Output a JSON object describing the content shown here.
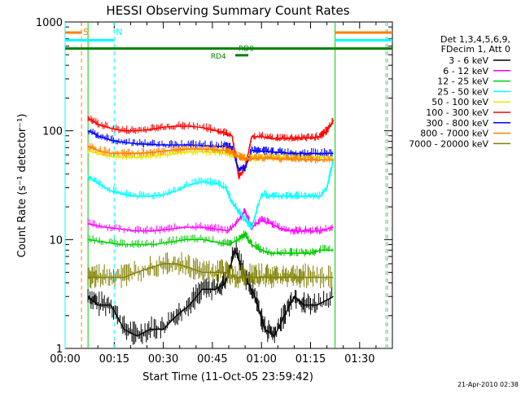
{
  "chart_data": {
    "type": "line",
    "title": "HESSI Observing Summary Count Rates",
    "xlabel": "Start Time (11-Oct-05 23:59:42)",
    "ylabel": "Count Rate (s⁻¹ detector⁻¹)",
    "y_scale": "log",
    "ylim": [
      1,
      1000
    ],
    "xlim_minutes": [
      0,
      100
    ],
    "x_ticks": [
      "00:00",
      "00:15",
      "00:30",
      "00:45",
      "01:00",
      "01:15",
      "01:30"
    ],
    "y_ticks": [
      "1",
      "10",
      "100",
      "1000"
    ],
    "legend_header": [
      "Det 1,3,4,5,6,9,",
      "FDecim 1, Att 0"
    ],
    "legend_position": "right",
    "timestamp": "21-Apr-2010 02:38",
    "series": [
      {
        "name": "3 - 6 keV",
        "color": "#000000",
        "x": [
          7,
          10,
          14,
          18,
          22,
          26,
          30,
          34,
          38,
          42,
          46,
          49,
          52,
          55,
          58,
          61,
          64,
          67,
          70,
          73,
          77,
          82
        ],
        "y": [
          3,
          2.5,
          2.5,
          1.5,
          1.3,
          1.5,
          1.5,
          2,
          2.5,
          3.5,
          3.5,
          4,
          8,
          4.5,
          3,
          1.5,
          1.3,
          2,
          3,
          2.5,
          2.5,
          3
        ]
      },
      {
        "name": "6 - 12 keV",
        "color": "#ff00ff",
        "x": [
          7,
          12,
          17,
          22,
          27,
          32,
          37,
          42,
          46,
          50,
          53,
          55,
          57,
          60,
          63,
          66,
          69,
          72,
          75,
          78,
          82
        ],
        "y": [
          14,
          13,
          12.5,
          12,
          12,
          12.5,
          13,
          13,
          12.5,
          12,
          15,
          18,
          13,
          15,
          14,
          12.5,
          12,
          12,
          12,
          12,
          13
        ]
      },
      {
        "name": "12 - 25 keV",
        "color": "#00cc00",
        "x": [
          7,
          12,
          17,
          22,
          27,
          32,
          37,
          42,
          46,
          50,
          53,
          55,
          57,
          60,
          63,
          66,
          69,
          72,
          75,
          78,
          82
        ],
        "y": [
          10,
          9.5,
          9,
          9,
          9,
          9.5,
          10,
          10,
          9.5,
          9,
          10,
          11,
          9,
          8,
          7.5,
          7.5,
          7.5,
          7.5,
          7.5,
          8,
          8
        ]
      },
      {
        "name": "25 - 50 keV",
        "color": "#00ffff",
        "x": [
          7,
          10,
          14,
          18,
          22,
          26,
          30,
          34,
          38,
          42,
          46,
          49,
          51,
          53,
          55,
          57,
          60,
          63,
          66,
          69,
          72,
          75,
          78,
          80,
          81,
          82
        ],
        "y": [
          38,
          33,
          28,
          26,
          25,
          25,
          26,
          28,
          32,
          34,
          33,
          30,
          22,
          18,
          15,
          13,
          26,
          25,
          25,
          25,
          25,
          25,
          25,
          30,
          40,
          55
        ]
      },
      {
        "name": "50 - 100 keV",
        "color": "#e8e800",
        "x": [
          7,
          10,
          14,
          18,
          22,
          26,
          30,
          34,
          38,
          42,
          46,
          49,
          51,
          52,
          55,
          57,
          60,
          63,
          66,
          69,
          72,
          75,
          78,
          82
        ],
        "y": [
          66,
          62,
          58,
          57,
          57,
          58,
          60,
          62,
          64,
          64,
          63,
          62,
          60,
          59,
          56,
          55,
          57,
          57,
          57,
          57,
          57,
          57,
          57,
          56
        ]
      },
      {
        "name": "100 - 300 keV",
        "color": "#ff0000",
        "x": [
          7,
          10,
          14,
          18,
          22,
          26,
          30,
          34,
          38,
          42,
          46,
          49,
          51,
          53,
          55,
          57,
          60,
          63,
          66,
          69,
          72,
          75,
          78,
          80,
          82
        ],
        "y": [
          130,
          115,
          105,
          100,
          100,
          103,
          108,
          110,
          110,
          107,
          100,
          95,
          90,
          38,
          45,
          88,
          88,
          85,
          85,
          85,
          86,
          86,
          88,
          100,
          125
        ]
      },
      {
        "name": "300 - 800 keV",
        "color": "#0000ff",
        "x": [
          7,
          10,
          14,
          18,
          22,
          26,
          30,
          34,
          38,
          42,
          46,
          49,
          51,
          53,
          55,
          57,
          60,
          63,
          66,
          69,
          72,
          75,
          78,
          82
        ],
        "y": [
          100,
          90,
          82,
          78,
          76,
          75,
          74,
          74,
          74,
          73,
          72,
          72,
          68,
          45,
          45,
          66,
          65,
          64,
          63,
          62,
          62,
          62,
          62,
          62
        ]
      },
      {
        "name": "800 - 7000 keV",
        "color": "#ff8000",
        "x": [
          7,
          10,
          14,
          18,
          22,
          26,
          30,
          34,
          38,
          42,
          46,
          49,
          51,
          53,
          55,
          57,
          60,
          63,
          66,
          69,
          72,
          75,
          78,
          82
        ],
        "y": [
          72,
          66,
          62,
          62,
          62,
          63,
          65,
          67,
          68,
          68,
          67,
          66,
          62,
          58,
          55,
          55,
          56,
          56,
          55,
          55,
          55,
          54,
          54,
          54
        ]
      },
      {
        "name": "7000 - 20000 keV",
        "color": "#808000",
        "x": [
          7,
          10,
          14,
          18,
          22,
          26,
          30,
          34,
          38,
          42,
          46,
          49,
          52,
          55,
          58,
          61,
          64,
          67,
          70,
          73,
          77,
          82
        ],
        "y": [
          4.5,
          4.5,
          4.5,
          4.5,
          5,
          5.5,
          6,
          6,
          5.5,
          5,
          5,
          5,
          4.5,
          4.5,
          4.5,
          4.5,
          4.5,
          4.5,
          4.5,
          4.5,
          4.5,
          4.5
        ]
      }
    ],
    "markers": [
      {
        "label": "S",
        "color": "#ff8000",
        "x": 5
      },
      {
        "label": "N",
        "color": "#00ffff",
        "x": 15
      }
    ],
    "vertical_lines": [
      {
        "color": "#ff8000",
        "x": 5,
        "style": "dashed"
      },
      {
        "color": "#00ffff",
        "x": 15,
        "style": "dashed"
      },
      {
        "color": "#00cc00",
        "x": 7,
        "style": "solid"
      },
      {
        "color": "#00cc00",
        "x": 82.5,
        "style": "solid"
      },
      {
        "color": "#00ffff",
        "x": 0,
        "style": "solid"
      },
      {
        "color": "#00ffff",
        "x": 98,
        "style": "dashed"
      },
      {
        "color": "#ff8000",
        "x": 98.5,
        "style": "dashed"
      }
    ],
    "bars": [
      {
        "label": "",
        "color": "#ff8000",
        "y": 800,
        "segments": [
          [
            0,
            5
          ],
          [
            82.5,
            100
          ]
        ]
      },
      {
        "label": "",
        "color": "#00ffff",
        "y": 680,
        "segments": [
          [
            0,
            15
          ],
          [
            82.5,
            100
          ]
        ]
      },
      {
        "label": "RD0",
        "color": "#008000",
        "y": 570,
        "segments": [
          [
            0,
            100
          ]
        ]
      },
      {
        "label": "RD4",
        "color": "#008000",
        "y": 495,
        "segments": [
          [
            52,
            56
          ]
        ]
      }
    ]
  }
}
